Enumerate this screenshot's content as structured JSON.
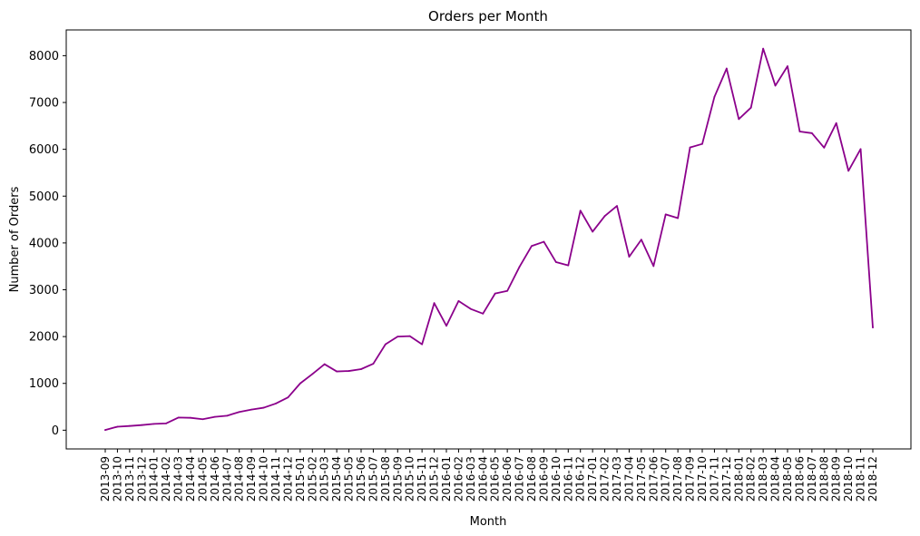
{
  "chart_data": {
    "type": "line",
    "title": "Orders per Month",
    "xlabel": "Month",
    "ylabel": "Number of Orders",
    "ylim": [
      -400,
      8550
    ],
    "yticks": [
      0,
      1000,
      2000,
      3000,
      4000,
      5000,
      6000,
      7000,
      8000
    ],
    "grid": false,
    "line_color": "#8b008b",
    "categories": [
      "2013-09",
      "2013-10",
      "2013-11",
      "2013-12",
      "2014-01",
      "2014-02",
      "2014-03",
      "2014-04",
      "2014-05",
      "2014-06",
      "2014-07",
      "2014-08",
      "2014-09",
      "2014-10",
      "2014-11",
      "2014-12",
      "2015-01",
      "2015-02",
      "2015-03",
      "2015-04",
      "2015-05",
      "2015-06",
      "2015-07",
      "2015-08",
      "2015-09",
      "2015-10",
      "2015-11",
      "2015-12",
      "2016-01",
      "2016-02",
      "2016-03",
      "2016-04",
      "2016-05",
      "2016-06",
      "2016-07",
      "2016-08",
      "2016-09",
      "2016-10",
      "2016-11",
      "2016-12",
      "2017-01",
      "2017-02",
      "2017-03",
      "2017-04",
      "2017-05",
      "2017-06",
      "2017-07",
      "2017-08",
      "2017-09",
      "2017-10",
      "2017-11",
      "2017-12",
      "2018-01",
      "2018-02",
      "2018-03",
      "2018-04",
      "2018-05",
      "2018-06",
      "2018-07",
      "2018-08",
      "2018-09",
      "2018-10",
      "2018-11",
      "2018-12"
    ],
    "values": [
      5,
      75,
      90,
      110,
      135,
      145,
      270,
      265,
      235,
      285,
      310,
      390,
      440,
      480,
      570,
      700,
      1000,
      1200,
      1410,
      1255,
      1265,
      1305,
      1420,
      1835,
      2000,
      2010,
      1835,
      2715,
      2230,
      2760,
      2590,
      2490,
      2920,
      2975,
      3490,
      3935,
      4025,
      3590,
      3520,
      4690,
      4240,
      4575,
      4790,
      3705,
      4070,
      3505,
      4610,
      4530,
      6040,
      6115,
      7120,
      7725,
      6645,
      6890,
      8150,
      7360,
      7775,
      6380,
      6345,
      6035,
      6560,
      5540,
      6005,
      2195
    ]
  }
}
